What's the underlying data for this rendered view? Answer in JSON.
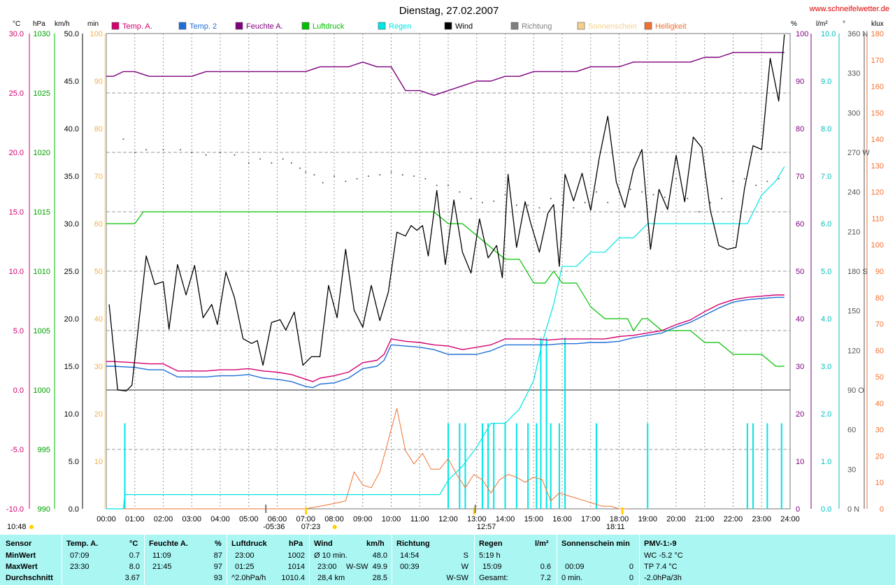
{
  "title": "Dienstag, 27.02.2007",
  "website": "www.schneifelwetter.de",
  "colors": {
    "temp_a": "#d4006f",
    "temp_2": "#1f6fd6",
    "feuchte": "#7f007f",
    "luftdruck": "#00c000",
    "regen": "#00e5e5",
    "wind": "#000000",
    "richtung": "#808080",
    "sonnenschein": "#f5d08c",
    "helligkeit": "#f07030",
    "stats_bg": "#a9f6f3"
  },
  "legend": [
    {
      "label": "Temp. A.",
      "color": "#d4006f"
    },
    {
      "label": "Temp. 2",
      "color": "#1f6fd6"
    },
    {
      "label": "Feuchte A.",
      "color": "#7f007f"
    },
    {
      "label": "Luftdruck",
      "color": "#00c000"
    },
    {
      "label": "Regen",
      "color": "#00e5e5"
    },
    {
      "label": "Wind",
      "color": "#000000"
    },
    {
      "label": "Richtung",
      "color": "#808080"
    },
    {
      "label": "Sonnenschein",
      "color": "#f5d08c"
    },
    {
      "label": "Helligkeit",
      "color": "#f07030"
    }
  ],
  "chart_data": {
    "type": "line",
    "title": "Dienstag, 27.02.2007",
    "x_ticks": [
      "00:00",
      "01:00",
      "02:00",
      "03:00",
      "04:00",
      "05:00",
      "06:00",
      "07:00",
      "08:00",
      "09:00",
      "10:00",
      "11:00",
      "12:00",
      "13:00",
      "14:00",
      "15:00",
      "16:00",
      "17:00",
      "18:00",
      "19:00",
      "20:00",
      "21:00",
      "22:00",
      "23:00",
      "24:00"
    ],
    "x_markers": {
      "moon_left": "10:48",
      "moonrise": "05:36",
      "sunrise": "07:23",
      "noon": "12:57",
      "sunset": "18:11"
    },
    "axes": {
      "temp": {
        "unit": "°C",
        "range": [
          -10,
          30
        ],
        "ticks": [
          "30.0",
          "25.0",
          "20.0",
          "15.0",
          "10.0",
          "5.0",
          "0.0",
          "-5.0",
          "-10.0"
        ]
      },
      "pressure": {
        "unit": "hPa",
        "range": [
          990,
          1030
        ],
        "ticks": [
          "1030",
          "1025",
          "1020",
          "1015",
          "1010",
          "1005",
          "1000",
          "995",
          "990"
        ]
      },
      "wind": {
        "unit": "km/h",
        "range": [
          0,
          50
        ],
        "ticks": [
          "50.0",
          "45.0",
          "40.0",
          "35.0",
          "30.0",
          "25.0",
          "20.0",
          "15.0",
          "10.0",
          "5.0",
          "0.0"
        ]
      },
      "sunshine": {
        "unit": "min",
        "range": [
          0,
          100
        ],
        "ticks": [
          "100",
          "90",
          "80",
          "70",
          "60",
          "50",
          "40",
          "30",
          "20",
          "10"
        ]
      },
      "humidity": {
        "unit": "%",
        "range": [
          0,
          100
        ],
        "ticks": [
          "100",
          "90",
          "80",
          "70",
          "60",
          "50",
          "40",
          "30",
          "20",
          "10",
          "0"
        ]
      },
      "rain": {
        "unit": "l/m²",
        "range": [
          0,
          10
        ],
        "ticks": [
          "10.0",
          "9.0",
          "8.0",
          "7.0",
          "6.0",
          "5.0",
          "4.0",
          "3.0",
          "2.0",
          "1.0",
          "0.0"
        ]
      },
      "direction": {
        "unit": "°",
        "range": [
          0,
          360
        ],
        "ticks": [
          "360 N",
          "330",
          "300",
          "270 W",
          "240",
          "210",
          "180 S",
          "150",
          "120",
          "90 O",
          "60",
          "30",
          "0 N"
        ]
      },
      "brightness": {
        "unit": "klux",
        "range": [
          0,
          180
        ],
        "ticks": [
          "180",
          "170",
          "160",
          "150",
          "140",
          "130",
          "120",
          "110",
          "100",
          "90",
          "80",
          "70",
          "60",
          "50",
          "40",
          "30",
          "20",
          "10",
          "0"
        ]
      }
    },
    "series": [
      {
        "name": "Temp. A.",
        "axis": "temp",
        "x": [
          0,
          0.25,
          1,
          1.5,
          2,
          2.5,
          3,
          3.5,
          4,
          4.5,
          5,
          5.5,
          6,
          6.5,
          7,
          7.25,
          7.5,
          8,
          8.5,
          9,
          9.5,
          9.75,
          10,
          10.5,
          11,
          11.5,
          12,
          12.5,
          13,
          13.5,
          14,
          14.5,
          15,
          15.5,
          16,
          16.5,
          17,
          17.5,
          18,
          18.5,
          19,
          19.5,
          20,
          20.5,
          21,
          21.5,
          22,
          22.5,
          23,
          23.5,
          23.8
        ],
        "y": [
          2.4,
          2.4,
          2.3,
          2.2,
          2.2,
          1.6,
          1.6,
          1.6,
          1.7,
          1.7,
          1.8,
          1.6,
          1.5,
          1.3,
          0.9,
          0.7,
          1.0,
          1.2,
          1.5,
          2.3,
          2.5,
          3.0,
          4.3,
          4.1,
          4.0,
          3.8,
          3.7,
          3.4,
          3.6,
          3.8,
          4.3,
          4.3,
          4.3,
          4.2,
          4.3,
          4.3,
          4.3,
          4.3,
          4.5,
          4.6,
          4.8,
          5.0,
          5.5,
          5.9,
          6.6,
          7.2,
          7.6,
          7.8,
          7.9,
          8.0,
          8.0
        ]
      },
      {
        "name": "Temp. 2",
        "axis": "temp",
        "x": [
          0,
          0.25,
          1,
          1.5,
          2,
          2.5,
          3,
          3.5,
          4,
          4.5,
          5,
          5.5,
          6,
          6.5,
          7,
          7.25,
          7.5,
          8,
          8.5,
          9,
          9.5,
          9.75,
          10,
          10.5,
          11,
          11.5,
          12,
          12.5,
          13,
          13.5,
          14,
          14.5,
          15,
          15.5,
          16,
          16.5,
          17,
          17.5,
          18,
          18.5,
          19,
          19.5,
          20,
          20.5,
          21,
          21.5,
          22,
          22.5,
          23,
          23.5,
          23.8
        ],
        "y": [
          2.0,
          2.0,
          1.9,
          1.7,
          1.7,
          1.1,
          1.1,
          1.1,
          1.2,
          1.2,
          1.3,
          1.0,
          0.9,
          0.7,
          0.3,
          0.2,
          0.5,
          0.6,
          1.0,
          1.8,
          2.0,
          2.5,
          3.8,
          3.7,
          3.6,
          3.4,
          3.0,
          3.0,
          3.0,
          3.3,
          3.8,
          3.8,
          3.8,
          3.8,
          3.9,
          3.9,
          4.0,
          4.0,
          4.1,
          4.4,
          4.6,
          4.8,
          5.3,
          5.7,
          6.3,
          6.9,
          7.4,
          7.6,
          7.7,
          7.8,
          7.8
        ]
      },
      {
        "name": "Feuchte A.",
        "axis": "humidity",
        "x": [
          0,
          0.25,
          0.6,
          1,
          1.5,
          2,
          2.5,
          3,
          3.5,
          4,
          4.5,
          5,
          5.5,
          6,
          6.5,
          7,
          7.5,
          8,
          8.5,
          9,
          9.5,
          10,
          10.5,
          11,
          11.5,
          12,
          12.5,
          13,
          13.5,
          14,
          14.5,
          15,
          15.5,
          16,
          16.5,
          17,
          17.5,
          18,
          18.5,
          19,
          19.5,
          20,
          20.5,
          21,
          21.5,
          22,
          22.5,
          23,
          23.5,
          23.8
        ],
        "y": [
          91,
          91,
          92,
          92,
          91,
          91,
          91,
          91,
          92,
          92,
          92,
          92,
          92,
          92,
          92,
          92,
          93,
          93,
          93,
          94,
          93,
          93,
          88,
          88,
          87,
          88,
          89,
          90,
          90,
          91,
          91,
          92,
          92,
          92,
          92,
          93,
          93,
          93,
          94,
          94,
          94,
          94,
          94,
          95,
          95,
          96,
          96,
          96,
          96,
          96
        ]
      },
      {
        "name": "Luftdruck",
        "axis": "pressure",
        "x": [
          0,
          1,
          1.3,
          2,
          4,
          6,
          8,
          10,
          11,
          11.5,
          12,
          12.5,
          13,
          13.5,
          14,
          14.5,
          15,
          15.4,
          15.7,
          16,
          16.5,
          17,
          17.5,
          18,
          18.3,
          18.5,
          18.8,
          19,
          19.5,
          20,
          20.5,
          21,
          21.5,
          22,
          22.5,
          23,
          23.5,
          23.8
        ],
        "y": [
          1014,
          1014,
          1015,
          1015,
          1015,
          1015,
          1015,
          1015,
          1015,
          1015,
          1014,
          1014,
          1013,
          1012,
          1011,
          1011,
          1009,
          1009,
          1010,
          1009,
          1009,
          1007,
          1006,
          1006,
          1006,
          1005,
          1006,
          1006,
          1005,
          1005,
          1005,
          1004,
          1004,
          1003,
          1003,
          1003,
          1002,
          1002
        ]
      },
      {
        "name": "Regen",
        "axis": "rain",
        "x": [
          0,
          0.6,
          0.65,
          11.7,
          12,
          12.5,
          13,
          13.5,
          14,
          14.5,
          15,
          15.3,
          15.5,
          15.7,
          16,
          16.5,
          17,
          17.5,
          18,
          18.5,
          19,
          19.5,
          20,
          20.5,
          21,
          21.5,
          22,
          22.5,
          23,
          23.5,
          23.8
        ],
        "y": [
          0,
          0,
          0.3,
          0.3,
          0.6,
          0.9,
          1.3,
          1.8,
          1.8,
          2.1,
          2.7,
          3.5,
          3.9,
          4.3,
          5.1,
          5.1,
          5.4,
          5.4,
          5.7,
          5.7,
          6.0,
          6.0,
          6.0,
          6.0,
          6.0,
          6.0,
          6.0,
          6.0,
          6.6,
          6.9,
          7.2
        ]
      },
      {
        "name": "Wind",
        "axis": "wind",
        "x": [
          0.1,
          0.4,
          0.7,
          0.9,
          1.4,
          1.7,
          2.0,
          2.2,
          2.5,
          2.8,
          3.1,
          3.4,
          3.7,
          3.9,
          4.2,
          4.5,
          4.8,
          5.1,
          5.3,
          5.5,
          5.8,
          6.1,
          6.3,
          6.6,
          6.9,
          7.2,
          7.5,
          7.8,
          8.1,
          8.4,
          8.7,
          9.0,
          9.3,
          9.6,
          9.9,
          10.2,
          10.5,
          10.7,
          10.9,
          11.1,
          11.3,
          11.6,
          11.9,
          12.2,
          12.5,
          12.8,
          13.1,
          13.4,
          13.7,
          13.9,
          14.1,
          14.4,
          14.7,
          14.9,
          15.2,
          15.5,
          15.7,
          15.9,
          16.1,
          16.4,
          16.7,
          17.0,
          17.3,
          17.6,
          17.9,
          18.2,
          18.5,
          18.8,
          19.1,
          19.4,
          19.7,
          20.0,
          20.3,
          20.6,
          20.9,
          21.2,
          21.5,
          21.8,
          22.1,
          22.4,
          22.7,
          23.0,
          23.3,
          23.6,
          23.8
        ],
        "y": [
          21.5,
          12.5,
          12.4,
          13,
          26.6,
          23.6,
          23.9,
          18.9,
          25.7,
          22.5,
          25.6,
          20.1,
          21.5,
          19.4,
          24.9,
          22.2,
          17.9,
          17.4,
          17.7,
          15.1,
          19.6,
          19.9,
          18.8,
          20.7,
          15.1,
          16,
          16,
          23.5,
          20.1,
          27.3,
          20.9,
          19.1,
          23.5,
          19.8,
          22.8,
          29.1,
          28.7,
          29.8,
          29.3,
          29.8,
          26.6,
          33.5,
          25.7,
          32.5,
          27,
          24.8,
          30.5,
          26.4,
          27.7,
          24.3,
          35.2,
          27.5,
          32.3,
          30,
          27,
          31.1,
          32,
          25.5,
          35.2,
          32.4,
          35.3,
          31.4,
          36.9,
          41.3,
          34.4,
          31.7,
          35.7,
          37.8,
          27.3,
          33.6,
          31.5,
          37.2,
          32.3,
          39.1,
          38,
          31.4,
          27.7,
          27.3,
          27.5,
          33.7,
          38.2,
          37.8,
          47.4,
          42.9,
          49.9
        ]
      },
      {
        "name": "Helligkeit",
        "axis": "brightness",
        "x": [
          0,
          7.0,
          7.5,
          8.0,
          8.4,
          8.7,
          9.0,
          9.3,
          9.6,
          9.9,
          10.2,
          10.5,
          10.8,
          11.1,
          11.4,
          11.7,
          12.0,
          12.3,
          12.6,
          12.9,
          13.2,
          13.5,
          13.8,
          14.1,
          14.4,
          14.7,
          15.0,
          15.3,
          15.6,
          15.9,
          16.2,
          16.5,
          16.8,
          17.1,
          17.4,
          17.7,
          18.0,
          18.3
        ],
        "y": [
          0,
          0,
          1,
          2,
          3,
          14,
          9,
          8,
          14,
          26,
          38,
          22,
          17,
          21,
          15,
          15,
          19,
          13,
          8,
          13,
          11,
          6,
          11,
          13,
          12,
          10,
          12,
          11,
          3,
          6,
          5,
          4,
          3,
          2,
          1,
          1,
          0,
          0
        ]
      },
      {
        "name": "Richtung",
        "axis": "direction",
        "x": [
          0.6,
          1.0,
          1.4,
          2.0,
          2.6,
          3.0,
          3.5,
          4.0,
          4.5,
          5.0,
          5.4,
          5.8,
          6.2,
          6.5,
          6.8,
          7.0,
          7.3,
          7.6,
          8.0,
          8.4,
          8.8,
          9.2,
          9.6,
          10.0,
          10.4,
          10.8,
          11.2,
          11.6,
          12.0,
          12.4,
          12.8,
          13.2,
          13.6,
          14.0,
          14.4,
          14.8,
          15.2,
          15.6,
          16.0,
          16.4,
          16.8,
          17.2,
          17.6,
          18.0,
          18.4,
          18.8,
          19.2,
          19.6,
          20.0,
          20.4,
          20.8,
          21.2,
          21.6,
          22.0,
          22.4,
          22.8,
          23.2,
          23.6
        ],
        "y": [
          280,
          270,
          272,
          272,
          272,
          270,
          268,
          270,
          268,
          262,
          265,
          262,
          265,
          262,
          258,
          255,
          253,
          247,
          252,
          248,
          250,
          252,
          253,
          255,
          253,
          252,
          250,
          245,
          245,
          240,
          235,
          232,
          233,
          238,
          230,
          230,
          228,
          235,
          230,
          228,
          232,
          240,
          232,
          240,
          242,
          240,
          238,
          236,
          250,
          235,
          225,
          232,
          235,
          248,
          250,
          245,
          248,
          250
        ]
      }
    ],
    "rain_bars_hours": [
      0.65,
      12.0,
      12.4,
      12.6,
      13.2,
      13.4,
      13.6,
      14.0,
      14.4,
      14.8,
      15.1,
      15.25,
      15.45,
      15.6,
      15.9,
      16.1,
      17.2,
      19.0,
      22.5,
      22.7,
      23.2,
      23.7
    ],
    "rain_bar_heights_lm2": [
      0.3,
      0.3,
      0.3,
      0.3,
      0.3,
      0.3,
      0.3,
      0.3,
      0.3,
      0.3,
      0.3,
      0.6,
      0.6,
      0.3,
      0.3,
      0.6,
      0.3,
      0.3,
      0.3,
      0.3,
      0.3,
      0.3
    ],
    "sunshine_marks_hours": [
      7.0,
      12.9,
      18.1
    ]
  },
  "stats": {
    "row_labels": [
      "Sensor",
      "MinWert",
      "MaxWert",
      "Durchschnitt"
    ],
    "temp": {
      "head": "Temp. A.",
      "unit": "°C",
      "min_time": "07:09",
      "min": "0.7",
      "max_time": "23:30",
      "max": "8.0",
      "avg": "3.67"
    },
    "feuchte": {
      "head": "Feuchte A.",
      "unit": "%",
      "min_time": "11:09",
      "min": "87",
      "max_time": "21:45",
      "max": "97",
      "avg": "93"
    },
    "druck": {
      "head": "Luftdruck",
      "unit": "hPa",
      "min_time": "23:00",
      "min": "1002",
      "max_time": "01:25",
      "max": "1014",
      "trend": "^2.0hPa/h",
      "avg": "1010.4"
    },
    "wind": {
      "head": "Wind",
      "unit": "km/h",
      "min_label": "Ø 10 min.",
      "min": "48.0",
      "max_time": "23:00",
      "max_dir": "W-SW",
      "max": "49.9",
      "distance": "28,4 km",
      "avg": "28.5"
    },
    "richtung": {
      "head": "Richtung",
      "min_time": "14:54",
      "min": "S",
      "max_time": "00:39",
      "max": "W",
      "avg": "W-SW"
    },
    "regen": {
      "head": "Regen",
      "unit": "l/m²",
      "r1": "5:19 h",
      "r2_time": "15:09",
      "r2": "0.6",
      "r3_label": "Gesamt:",
      "r3": "7.2"
    },
    "sonne": {
      "head": "Sonnenschein min",
      "r2_time": "00:09",
      "r2": "0",
      "r3_label": "0 min.",
      "r3": "0"
    },
    "pmv": {
      "head": "PMV-1:-9",
      "wc": "WC -5.2 °C",
      "tp": "TP 7.4 °C",
      "trend": "-2.0hPa/3h"
    }
  }
}
